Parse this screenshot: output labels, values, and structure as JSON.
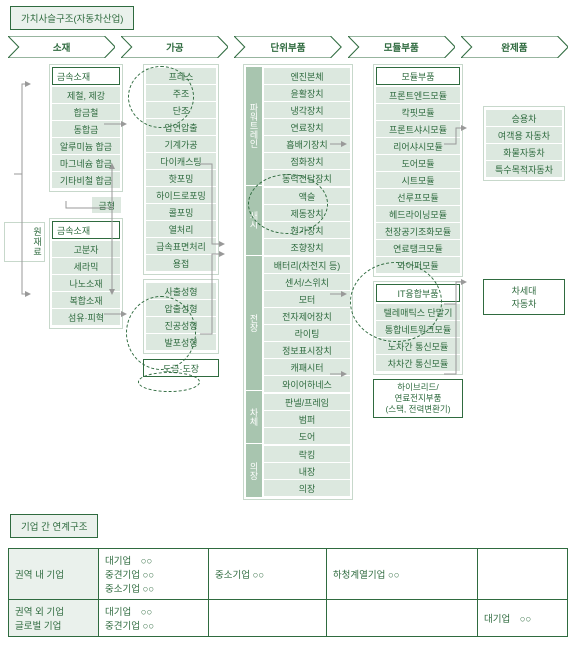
{
  "titles": {
    "main": "가치사슬구조(자동차산업)",
    "linkage": "기업 간 연계구조"
  },
  "stages": [
    "소재",
    "가공",
    "단위부품",
    "모듈부품",
    "완제품"
  ],
  "colors": {
    "green": "#2f6b3f",
    "light": "#eaf1ec",
    "item": "#dce8df",
    "cat": "#a8c5af",
    "border": "#c7d8cb",
    "arrow": "#999999"
  },
  "raw_label": "원재료",
  "metal_mold": "금형",
  "col1": {
    "metal": {
      "header": "금속소재",
      "items": [
        "제철, 제강",
        "합금철",
        "동합금",
        "알루미늄 합금",
        "마그네슘 합금",
        "기타비철 합금"
      ]
    },
    "nonmetal": {
      "header": "금속소재",
      "items": [
        "고분자",
        "세라믹",
        "나노소재",
        "복합소재",
        "섬유·피혁"
      ]
    }
  },
  "col2": {
    "proc1": {
      "items": [
        "프레스",
        "주조",
        "단조",
        "압연압출",
        "기계가공",
        "다이캐스팅",
        "핫포밍",
        "하이드로포밍",
        "콜포밍",
        "열처리",
        "급속표면처리",
        "용접"
      ]
    },
    "proc2": {
      "items": [
        "사출성형",
        "압출성형",
        "진공성형",
        "발포성형"
      ]
    },
    "coating": "도금·도장"
  },
  "col3": {
    "cats": [
      "파워트레인",
      "새시",
      "전장",
      "차체",
      "의장"
    ],
    "pt": [
      "엔진본체",
      "윤활장치",
      "냉각장치",
      "연료장치",
      "흡배기장치",
      "점화장치",
      "동력전달장치"
    ],
    "chassis": [
      "액슬",
      "제동장치",
      "현가장치",
      "조향장치"
    ],
    "elec": [
      "배터리(차전지 등)",
      "센서/스위치",
      "모터",
      "전자제어장치",
      "라이팅",
      "정보표시장치",
      "캐패시터",
      "와이어하네스"
    ],
    "body": [
      "판넬/프레임",
      "범퍼",
      "도어"
    ],
    "int": [
      "락킹",
      "내장",
      "의장"
    ]
  },
  "col4": {
    "mod": {
      "header": "모듈부품",
      "items": [
        "프론트엔드모듈",
        "칵핏모듈",
        "프론트샤시모듈",
        "리어샤시모듈",
        "도어모듈",
        "시트모듈",
        "선루프모듈",
        "헤드라이닝모듈",
        "천장공기조화모듈",
        "연료탱크모듈",
        "와이퍼모듈"
      ]
    },
    "it": {
      "header": "IT융합부품",
      "items": [
        "텔레매틱스 단말기",
        "통합네트워크모듈",
        "노차간 통신모듈",
        "차차간 통신모듈"
      ]
    },
    "hybrid": {
      "l1": "하이브리드/",
      "l2": "연료전지부품",
      "l3": "(스택, 전력변환기)"
    }
  },
  "col5": {
    "fin": {
      "items": [
        "승용차",
        "여객용 자동차",
        "화물자동차",
        "특수목적자동차"
      ]
    },
    "next": "차세대\n자동차"
  },
  "table": {
    "r1c1": "권역 내 기업",
    "r1c2": "대기업　○○\n중견기업 ○○\n중소기업 ○○",
    "r1c3": "중소기업 ○○",
    "r1c4": "하청계열기업 ○○",
    "r1c5": "",
    "r2c1": "권역 외 기업\n글로벌 기업",
    "r2c2": "대기업　○○\n중견기업 ○○",
    "r2c3": "",
    "r2c4": "",
    "r2c5": "대기업　○○"
  }
}
